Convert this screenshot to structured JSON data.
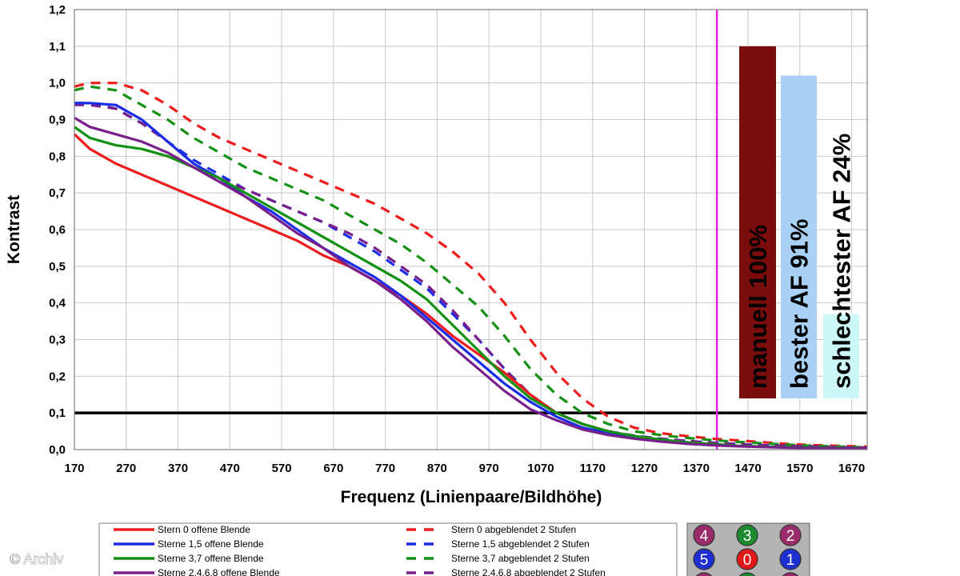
{
  "chart_data": {
    "type": "line",
    "title": "",
    "xlabel": "Frequenz (Linienpaare/Bildhöhe)",
    "ylabel": "Kontrast",
    "xlim": [
      170,
      1700
    ],
    "ylim": [
      0.0,
      1.2
    ],
    "x_ticks": [
      "170",
      "270",
      "370",
      "470",
      "570",
      "670",
      "770",
      "870",
      "970",
      "1070",
      "1170",
      "1270",
      "1370",
      "1470",
      "1570",
      "1670"
    ],
    "y_ticks": [
      "0,0",
      "0,1",
      "0,2",
      "0,3",
      "0,4",
      "0,5",
      "0,6",
      "0,7",
      "0,8",
      "0,9",
      "1,0",
      "1,1",
      "1,2"
    ],
    "grid": true,
    "reference_line": {
      "y": 0.1,
      "color": "#000000"
    },
    "vertical_marker": {
      "x": 1410,
      "color": "#e020e0"
    },
    "series": [
      {
        "name": "Stern 0 offene Blende",
        "color": "#ee1c1c",
        "style": "solid",
        "x": [
          170,
          200,
          250,
          300,
          350,
          400,
          450,
          500,
          550,
          600,
          650,
          700,
          750,
          800,
          850,
          900,
          950,
          1000,
          1050,
          1100,
          1150,
          1200,
          1250,
          1300,
          1350,
          1400,
          1450,
          1500,
          1550,
          1600,
          1650,
          1700
        ],
        "y": [
          0.86,
          0.82,
          0.78,
          0.75,
          0.72,
          0.69,
          0.66,
          0.63,
          0.6,
          0.57,
          0.53,
          0.5,
          0.46,
          0.42,
          0.37,
          0.31,
          0.26,
          0.21,
          0.15,
          0.1,
          0.07,
          0.05,
          0.035,
          0.025,
          0.02,
          0.015,
          0.01,
          0.008,
          0.006,
          0.005,
          0.004,
          0.003
        ]
      },
      {
        "name": "Sterne 1,5 offene Blende",
        "color": "#1a2ee8",
        "style": "solid",
        "x": [
          170,
          200,
          250,
          300,
          350,
          400,
          450,
          500,
          550,
          600,
          650,
          700,
          750,
          800,
          850,
          900,
          950,
          1000,
          1050,
          1100,
          1150,
          1200,
          1250,
          1300,
          1350,
          1400,
          1450,
          1500,
          1550,
          1600,
          1650,
          1700
        ],
        "y": [
          0.945,
          0.945,
          0.94,
          0.9,
          0.84,
          0.78,
          0.74,
          0.69,
          0.65,
          0.6,
          0.55,
          0.51,
          0.47,
          0.42,
          0.36,
          0.3,
          0.24,
          0.18,
          0.13,
          0.09,
          0.06,
          0.045,
          0.035,
          0.025,
          0.02,
          0.015,
          0.01,
          0.008,
          0.006,
          0.005,
          0.004,
          0.003
        ]
      },
      {
        "name": "Sterne 3,7 offene Blende",
        "color": "#139113",
        "style": "solid",
        "x": [
          170,
          200,
          250,
          300,
          350,
          400,
          450,
          500,
          550,
          600,
          650,
          700,
          750,
          800,
          850,
          900,
          950,
          1000,
          1050,
          1100,
          1150,
          1200,
          1250,
          1300,
          1350,
          1400,
          1450,
          1500,
          1550,
          1600,
          1650,
          1700
        ],
        "y": [
          0.88,
          0.85,
          0.83,
          0.82,
          0.8,
          0.77,
          0.74,
          0.7,
          0.66,
          0.62,
          0.58,
          0.54,
          0.5,
          0.46,
          0.41,
          0.34,
          0.27,
          0.2,
          0.14,
          0.1,
          0.07,
          0.05,
          0.037,
          0.028,
          0.02,
          0.015,
          0.01,
          0.008,
          0.006,
          0.005,
          0.004,
          0.003
        ]
      },
      {
        "name": "Sterne 2,4,6,8 offene Blende",
        "color": "#781f8c",
        "style": "solid",
        "x": [
          170,
          200,
          250,
          300,
          350,
          400,
          450,
          500,
          550,
          600,
          650,
          700,
          750,
          800,
          850,
          900,
          950,
          1000,
          1050,
          1100,
          1150,
          1200,
          1250,
          1300,
          1350,
          1400,
          1450,
          1500,
          1550,
          1600,
          1650,
          1700
        ],
        "y": [
          0.905,
          0.88,
          0.86,
          0.84,
          0.81,
          0.77,
          0.73,
          0.69,
          0.64,
          0.59,
          0.55,
          0.5,
          0.46,
          0.41,
          0.35,
          0.28,
          0.22,
          0.16,
          0.11,
          0.08,
          0.055,
          0.04,
          0.03,
          0.022,
          0.016,
          0.012,
          0.009,
          0.007,
          0.005,
          0.004,
          0.003,
          0.003
        ]
      },
      {
        "name": "Stern 0 abgeblendet 2 Stufen",
        "color": "#ee1c1c",
        "style": "dashed",
        "x": [
          170,
          200,
          250,
          300,
          350,
          400,
          450,
          500,
          550,
          600,
          650,
          700,
          750,
          800,
          850,
          900,
          950,
          1000,
          1050,
          1100,
          1150,
          1200,
          1250,
          1300,
          1350,
          1400,
          1450,
          1500,
          1550,
          1600,
          1650,
          1700
        ],
        "y": [
          0.99,
          1.0,
          1.0,
          0.98,
          0.94,
          0.89,
          0.85,
          0.82,
          0.79,
          0.76,
          0.73,
          0.7,
          0.67,
          0.63,
          0.59,
          0.54,
          0.48,
          0.4,
          0.3,
          0.21,
          0.14,
          0.09,
          0.06,
          0.045,
          0.037,
          0.03,
          0.025,
          0.02,
          0.015,
          0.012,
          0.01,
          0.008
        ]
      },
      {
        "name": "Sterne 1,5 abgeblendet 2 Stufen",
        "color": "#1a2ee8",
        "style": "dashed",
        "x": [
          170,
          200,
          250,
          300,
          350,
          400,
          450,
          500,
          550,
          600,
          650,
          700,
          750,
          800,
          850,
          900,
          950,
          1000,
          1050,
          1100,
          1150,
          1200,
          1250,
          1300,
          1350,
          1400,
          1450,
          1500,
          1550,
          1600,
          1650,
          1700
        ],
        "y": [
          0.945,
          0.945,
          0.93,
          0.89,
          0.84,
          0.79,
          0.75,
          0.71,
          0.68,
          0.65,
          0.62,
          0.58,
          0.54,
          0.49,
          0.44,
          0.37,
          0.3,
          0.22,
          0.15,
          0.1,
          0.07,
          0.05,
          0.038,
          0.03,
          0.024,
          0.019,
          0.015,
          0.012,
          0.01,
          0.008,
          0.006,
          0.005
        ]
      },
      {
        "name": "Sterne 3,7 abgeblendet 2 Stufen",
        "color": "#139113",
        "style": "dashed",
        "x": [
          170,
          200,
          250,
          300,
          350,
          400,
          450,
          500,
          550,
          600,
          650,
          700,
          750,
          800,
          850,
          900,
          950,
          1000,
          1050,
          1100,
          1150,
          1200,
          1250,
          1300,
          1350,
          1400,
          1450,
          1500,
          1550,
          1600,
          1650,
          1700
        ],
        "y": [
          0.98,
          0.99,
          0.98,
          0.94,
          0.9,
          0.85,
          0.81,
          0.77,
          0.74,
          0.71,
          0.68,
          0.64,
          0.6,
          0.56,
          0.51,
          0.45,
          0.39,
          0.31,
          0.22,
          0.15,
          0.1,
          0.07,
          0.05,
          0.04,
          0.032,
          0.026,
          0.021,
          0.017,
          0.013,
          0.01,
          0.008,
          0.006
        ]
      },
      {
        "name": "Sterne 2,4,6,8 abgeblendet 2 Stufen",
        "color": "#781f8c",
        "style": "dashed",
        "x": [
          170,
          200,
          250,
          300,
          350,
          400,
          450,
          500,
          550,
          600,
          650,
          700,
          750,
          800,
          850,
          900,
          950,
          1000,
          1050,
          1100,
          1150,
          1200,
          1250,
          1300,
          1350,
          1400,
          1450,
          1500,
          1550,
          1600,
          1650,
          1700
        ],
        "y": [
          0.94,
          0.94,
          0.93,
          0.89,
          0.84,
          0.78,
          0.74,
          0.71,
          0.68,
          0.65,
          0.62,
          0.59,
          0.55,
          0.5,
          0.45,
          0.38,
          0.3,
          0.22,
          0.15,
          0.1,
          0.07,
          0.05,
          0.038,
          0.03,
          0.024,
          0.019,
          0.015,
          0.012,
          0.01,
          0.008,
          0.006,
          0.005
        ]
      }
    ],
    "annotation_bars": [
      {
        "label": "manuell 100%",
        "value": 1.1,
        "fill": "#7b0c0c"
      },
      {
        "label": "bester AF 91%",
        "value": 1.02,
        "fill": "#a8d1f5"
      },
      {
        "label": "schlechtester AF 24%",
        "value": 0.37,
        "fill": "#cdf8f8"
      }
    ],
    "legend_position": "bottom"
  },
  "badge_grid": [
    {
      "label": "4",
      "color": "#9b2c6b"
    },
    {
      "label": "3",
      "color": "#1c8a2e"
    },
    {
      "label": "2",
      "color": "#9b2c6b"
    },
    {
      "label": "5",
      "color": "#1d2fd0"
    },
    {
      "label": "0",
      "color": "#e01818"
    },
    {
      "label": "1",
      "color": "#1d2fd0"
    }
  ],
  "credit": "© Archiv"
}
